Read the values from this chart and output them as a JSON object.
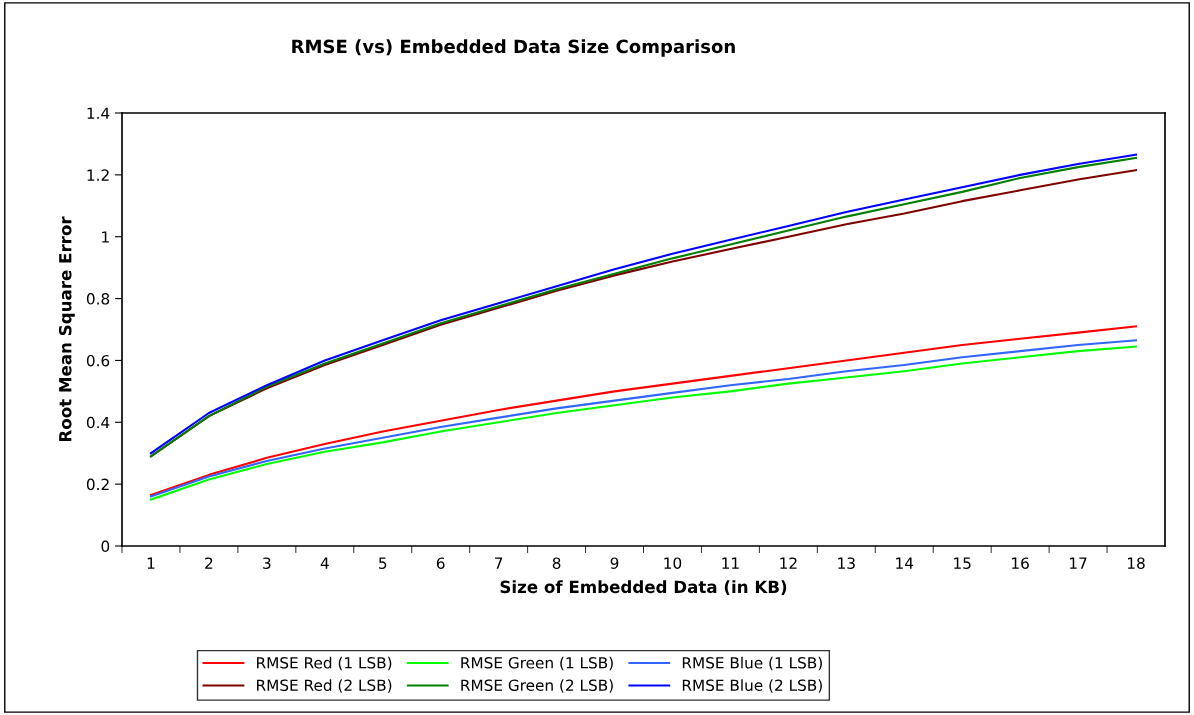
{
  "chart_data": {
    "type": "line",
    "title": "RMSE (vs) Embedded Data Size Comparison",
    "xlabel": "Size of Embedded Data (in KB)",
    "ylabel": "Root Mean Square Error",
    "categories": [
      "1",
      "2",
      "3",
      "4",
      "5",
      "6",
      "7",
      "8",
      "9",
      "10",
      "11",
      "12",
      "13",
      "14",
      "15",
      "16",
      "17",
      "18"
    ],
    "series": [
      {
        "name": "RMSE Red (1 LSB)",
        "color": "#ff0000",
        "values": [
          0.165,
          0.23,
          0.285,
          0.33,
          0.37,
          0.405,
          0.44,
          0.47,
          0.5,
          0.525,
          0.55,
          0.575,
          0.6,
          0.625,
          0.65,
          0.67,
          0.69,
          0.71
        ]
      },
      {
        "name": "RMSE Green (1 LSB)",
        "color": "#00ff00",
        "values": [
          0.15,
          0.215,
          0.265,
          0.305,
          0.335,
          0.37,
          0.4,
          0.43,
          0.455,
          0.48,
          0.5,
          0.525,
          0.545,
          0.565,
          0.59,
          0.61,
          0.63,
          0.645
        ]
      },
      {
        "name": "RMSE Blue (1 LSB)",
        "color": "#3366ff",
        "values": [
          0.16,
          0.225,
          0.275,
          0.315,
          0.35,
          0.385,
          0.415,
          0.445,
          0.47,
          0.495,
          0.52,
          0.54,
          0.565,
          0.585,
          0.61,
          0.63,
          0.65,
          0.665
        ]
      },
      {
        "name": "RMSE Red (2 LSB)",
        "color": "#800000",
        "values": [
          0.29,
          0.42,
          0.51,
          0.585,
          0.65,
          0.715,
          0.77,
          0.825,
          0.875,
          0.92,
          0.96,
          1.0,
          1.04,
          1.075,
          1.115,
          1.15,
          1.185,
          1.215
        ]
      },
      {
        "name": "RMSE Green (2 LSB)",
        "color": "#008000",
        "values": [
          0.29,
          0.42,
          0.515,
          0.59,
          0.655,
          0.72,
          0.775,
          0.83,
          0.88,
          0.93,
          0.975,
          1.02,
          1.065,
          1.105,
          1.145,
          1.19,
          1.225,
          1.255
        ]
      },
      {
        "name": "RMSE Blue (2 LSB)",
        "color": "#0000ff",
        "values": [
          0.3,
          0.43,
          0.52,
          0.6,
          0.665,
          0.73,
          0.785,
          0.84,
          0.895,
          0.945,
          0.99,
          1.035,
          1.08,
          1.12,
          1.16,
          1.2,
          1.235,
          1.265
        ]
      }
    ],
    "ylim": [
      0,
      1.4
    ],
    "yticks": [
      0,
      0.2,
      0.4,
      0.6,
      0.8,
      1,
      1.2,
      1.4
    ],
    "grid": false,
    "legend": "bottom",
    "marker": "none",
    "line_style": "solid"
  }
}
